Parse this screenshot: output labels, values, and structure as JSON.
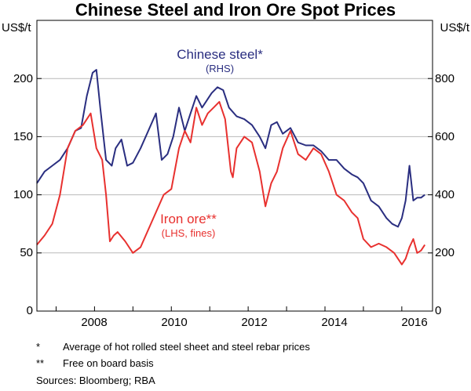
{
  "chart_data": {
    "type": "line",
    "title": "Chinese Steel and Iron Ore Spot Prices",
    "left_axis": {
      "unit": "US$/t",
      "ylim": [
        0,
        250
      ],
      "ticks": [
        0,
        50,
        100,
        150,
        200
      ]
    },
    "right_axis": {
      "unit": "US$/t",
      "ylim": [
        0,
        1000
      ],
      "ticks": [
        0,
        200,
        400,
        600,
        800
      ]
    },
    "x_axis": {
      "xlim": [
        2006.5,
        2016.8
      ],
      "ticks": [
        2008,
        2010,
        2012,
        2014,
        2016
      ]
    },
    "grid": true,
    "series": [
      {
        "name": "Chinese steel*",
        "sub": "(RHS)",
        "axis": "right",
        "color": "#2a2e80",
        "x": [
          2006.5,
          2006.7,
          2006.9,
          2007.1,
          2007.3,
          2007.5,
          2007.65,
          2007.8,
          2007.95,
          2008.05,
          2008.15,
          2008.3,
          2008.45,
          2008.55,
          2008.7,
          2008.85,
          2009.0,
          2009.2,
          2009.4,
          2009.6,
          2009.75,
          2009.9,
          2010.05,
          2010.2,
          2010.35,
          2010.5,
          2010.65,
          2010.8,
          2010.9,
          2011.05,
          2011.2,
          2011.35,
          2011.5,
          2011.7,
          2011.9,
          2012.1,
          2012.3,
          2012.45,
          2012.6,
          2012.75,
          2012.9,
          2013.1,
          2013.3,
          2013.5,
          2013.7,
          2013.9,
          2014.1,
          2014.3,
          2014.5,
          2014.7,
          2014.85,
          2015.0,
          2015.2,
          2015.4,
          2015.6,
          2015.75,
          2015.9,
          2016.0,
          2016.1,
          2016.2,
          2016.3,
          2016.4,
          2016.5,
          2016.6
        ],
        "values": [
          440,
          480,
          500,
          520,
          560,
          620,
          630,
          740,
          820,
          830,
          700,
          520,
          500,
          560,
          590,
          500,
          510,
          560,
          620,
          680,
          520,
          540,
          600,
          700,
          620,
          680,
          740,
          700,
          720,
          750,
          770,
          760,
          700,
          670,
          660,
          640,
          600,
          560,
          640,
          650,
          610,
          630,
          580,
          570,
          570,
          550,
          520,
          520,
          490,
          470,
          460,
          440,
          380,
          360,
          320,
          300,
          290,
          320,
          380,
          500,
          380,
          390,
          390,
          400
        ]
      },
      {
        "name": "Iron ore**",
        "sub": "(LHS, fines)",
        "axis": "left",
        "color": "#e8312f",
        "x": [
          2006.5,
          2006.7,
          2006.9,
          2007.1,
          2007.3,
          2007.5,
          2007.7,
          2007.9,
          2008.05,
          2008.2,
          2008.3,
          2008.4,
          2008.5,
          2008.6,
          2008.8,
          2009.0,
          2009.2,
          2009.4,
          2009.6,
          2009.8,
          2010.0,
          2010.2,
          2010.35,
          2010.5,
          2010.65,
          2010.8,
          2010.95,
          2011.1,
          2011.25,
          2011.4,
          2011.55,
          2011.6,
          2011.7,
          2011.9,
          2012.1,
          2012.3,
          2012.45,
          2012.6,
          2012.75,
          2012.9,
          2013.1,
          2013.3,
          2013.5,
          2013.7,
          2013.9,
          2014.1,
          2014.3,
          2014.5,
          2014.7,
          2014.85,
          2015.0,
          2015.2,
          2015.4,
          2015.6,
          2015.8,
          2015.9,
          2016.0,
          2016.1,
          2016.2,
          2016.3,
          2016.4,
          2016.5,
          2016.6
        ],
        "values": [
          57,
          65,
          75,
          100,
          140,
          155,
          160,
          170,
          140,
          130,
          100,
          60,
          65,
          68,
          60,
          50,
          55,
          70,
          85,
          100,
          105,
          140,
          155,
          145,
          175,
          160,
          170,
          175,
          180,
          165,
          120,
          115,
          140,
          150,
          145,
          120,
          90,
          110,
          120,
          140,
          155,
          135,
          130,
          140,
          135,
          120,
          100,
          95,
          85,
          80,
          62,
          55,
          58,
          55,
          50,
          45,
          40,
          45,
          55,
          62,
          50,
          52,
          57
        ]
      }
    ],
    "annotations": [
      "*",
      "Average of hot rolled steel sheet and steel rebar prices",
      "**",
      "Free on board basis"
    ],
    "source": "Sources:   Bloomberg; RBA"
  },
  "labels": {
    "title": "Chinese Steel and Iron Ore Spot Prices",
    "left_unit": "US$/t",
    "right_unit": "US$/t",
    "steel_name": "Chinese steel*",
    "steel_sub": "(RHS)",
    "ore_name": "Iron ore**",
    "ore_sub": "(LHS, fines)",
    "left_ticks": [
      "0",
      "50",
      "100",
      "150",
      "200"
    ],
    "right_ticks": [
      "0",
      "200",
      "400",
      "600",
      "800"
    ],
    "x_ticks": [
      "2008",
      "2010",
      "2012",
      "2014",
      "2016"
    ]
  },
  "notes": [
    {
      "mark": "*",
      "text": "Average of hot rolled steel sheet and steel rebar prices"
    },
    {
      "mark": "**",
      "text": "Free on board basis"
    }
  ],
  "sources": "Sources:   Bloomberg; RBA"
}
